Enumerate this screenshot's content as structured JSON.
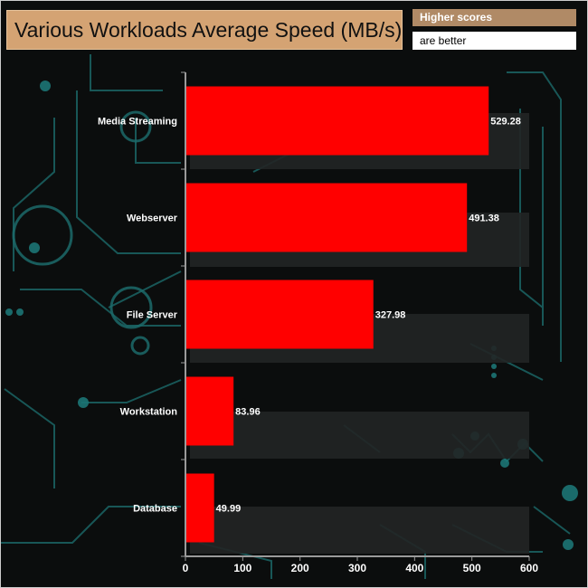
{
  "colors": {
    "bar": "#ff0000",
    "title_box": "#d4a373",
    "note_top_bg": "#b08a66",
    "note_bottom_bg": "#ffffff",
    "background": "#0b0d0d",
    "circuit": "#1c6a6a"
  },
  "header": {
    "title": "Various Workloads Average Speed (MB/s)",
    "note_line1": "Higher scores",
    "note_line2": "are better"
  },
  "chart_data": {
    "type": "bar",
    "orientation": "horizontal",
    "title": "Various Workloads Average Speed (MB/s)",
    "categories": [
      "Media Streaming",
      "Webserver",
      "File Server",
      "Workstation",
      "Database"
    ],
    "values": [
      529.28,
      491.38,
      327.98,
      83.96,
      49.99
    ],
    "value_labels": [
      "529.28",
      "491.38",
      "327.98",
      "83.96",
      "49.99"
    ],
    "xlim": [
      0,
      600
    ],
    "xticks": [
      0,
      100,
      200,
      300,
      400,
      500,
      600
    ],
    "xtick_labels": [
      "0",
      "100",
      "200",
      "300",
      "400",
      "500",
      "600"
    ],
    "xlabel": "",
    "ylabel": "",
    "grid": false,
    "legend": "none"
  }
}
